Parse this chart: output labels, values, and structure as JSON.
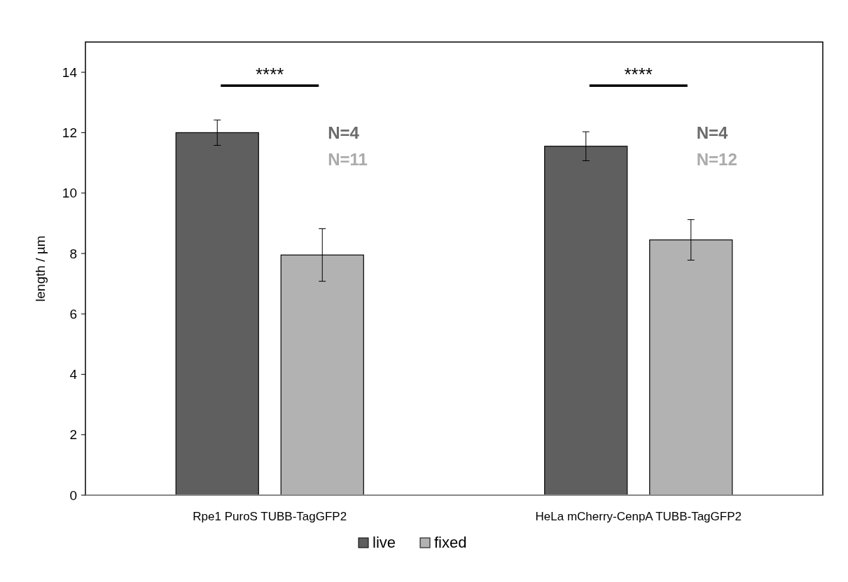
{
  "chart_data": {
    "type": "bar",
    "ylabel": "length / µm",
    "categories": [
      "Rpe1 PuroS TUBB-TagGFP2",
      "HeLa mCherry-CenpA TUBB-TagGFP2"
    ],
    "series": [
      {
        "name": "live",
        "color": "#5f5f5f",
        "values": [
          12.0,
          11.55
        ],
        "errors": [
          0.42,
          0.48
        ]
      },
      {
        "name": "fixed",
        "color": "#b2b2b2",
        "values": [
          7.95,
          8.45
        ],
        "errors": [
          0.87,
          0.67
        ]
      }
    ],
    "ylim": [
      0,
      15
    ],
    "yticks": [
      0,
      2,
      4,
      6,
      8,
      10,
      12,
      14
    ],
    "grid": false,
    "legend": "bottom",
    "annotations": [
      "****",
      "****",
      "N=4",
      "N=11",
      "N=4",
      "N=12"
    ]
  }
}
